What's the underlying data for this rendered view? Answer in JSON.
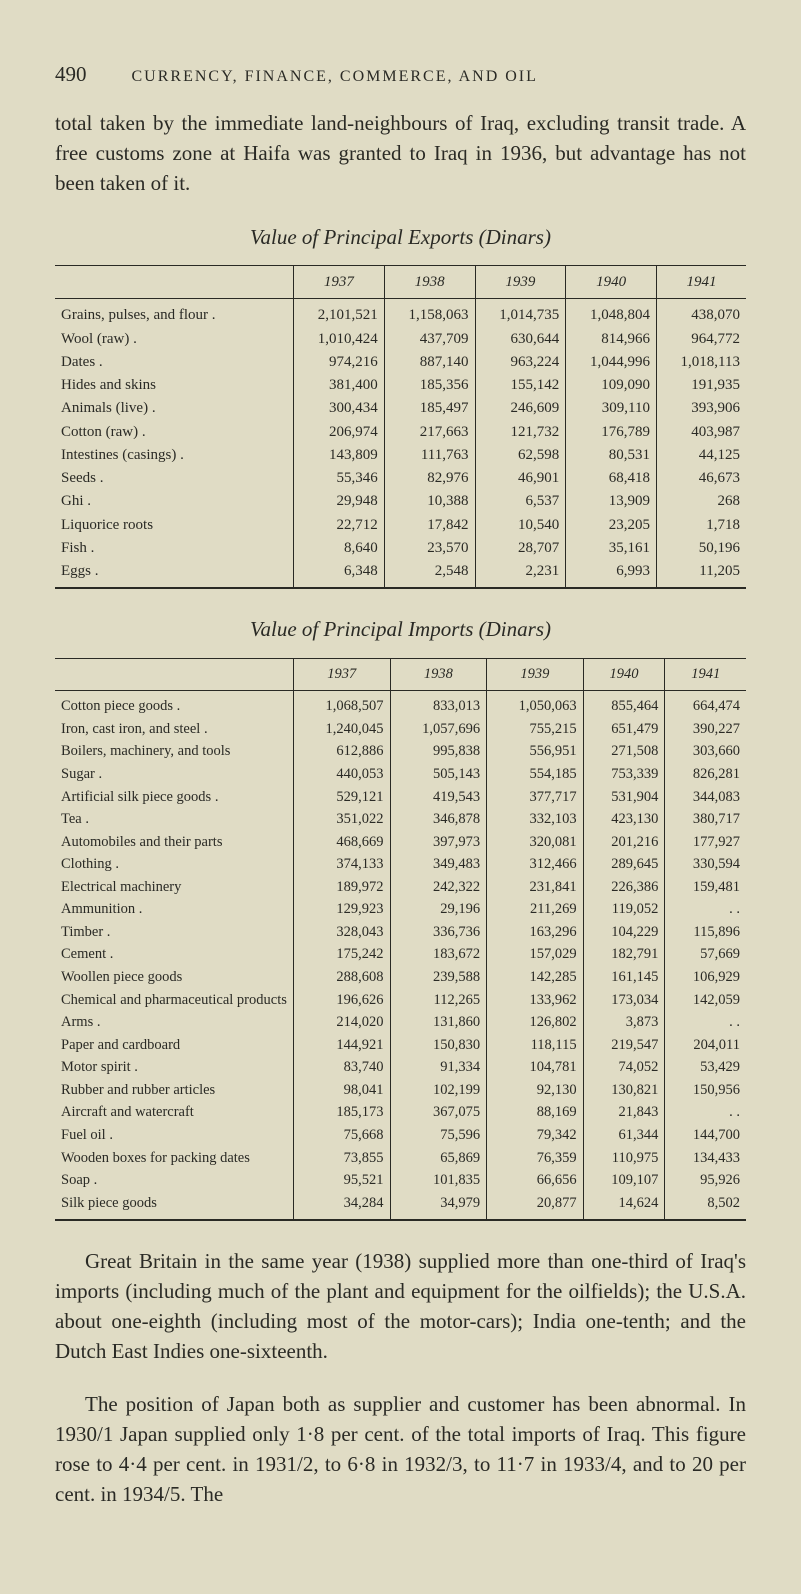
{
  "pageNumber": "490",
  "pageTitle": "CURRENCY, FINANCE, COMMERCE, AND OIL",
  "intro": "total taken by the immediate land-neighbours of Iraq, excluding transit trade. A free customs zone at Haifa was granted to Iraq in 1936, but advantage has not been taken of it.",
  "exportsTitle": "Value of Principal Exports (Dinars)",
  "importsTitle": "Value of Principal Imports (Dinars)",
  "years": [
    "1937",
    "1938",
    "1939",
    "1940",
    "1941"
  ],
  "exports": [
    {
      "label": "Grains, pulses, and flour .",
      "v": [
        "2,101,521",
        "1,158,063",
        "1,014,735",
        "1,048,804",
        "438,070"
      ]
    },
    {
      "label": "Wool (raw)   .",
      "v": [
        "1,010,424",
        "437,709",
        "630,644",
        "814,966",
        "964,772"
      ]
    },
    {
      "label": "Dates    .",
      "v": [
        "974,216",
        "887,140",
        "963,224",
        "1,044,996",
        "1,018,113"
      ]
    },
    {
      "label": "Hides and skins",
      "v": [
        "381,400",
        "185,356",
        "155,142",
        "109,090",
        "191,935"
      ]
    },
    {
      "label": "Animals (live) .",
      "v": [
        "300,434",
        "185,497",
        "246,609",
        "309,110",
        "393,906"
      ]
    },
    {
      "label": "Cotton (raw)  .",
      "v": [
        "206,974",
        "217,663",
        "121,732",
        "176,789",
        "403,987"
      ]
    },
    {
      "label": "Intestines (casings) .",
      "v": [
        "143,809",
        "111,763",
        "62,598",
        "80,531",
        "44,125"
      ]
    },
    {
      "label": "Seeds    .",
      "v": [
        "55,346",
        "82,976",
        "46,901",
        "68,418",
        "46,673"
      ]
    },
    {
      "label": "Ghi     .",
      "v": [
        "29,948",
        "10,388",
        "6,537",
        "13,909",
        "268"
      ]
    },
    {
      "label": "Liquorice roots",
      "v": [
        "22,712",
        "17,842",
        "10,540",
        "23,205",
        "1,718"
      ]
    },
    {
      "label": "Fish     .",
      "v": [
        "8,640",
        "23,570",
        "28,707",
        "35,161",
        "50,196"
      ]
    },
    {
      "label": "Eggs    .",
      "v": [
        "6,348",
        "2,548",
        "2,231",
        "6,993",
        "11,205"
      ]
    }
  ],
  "imports": [
    {
      "label": "Cotton piece goods .",
      "v": [
        "1,068,507",
        "833,013",
        "1,050,063",
        "855,464",
        "664,474"
      ]
    },
    {
      "label": "Iron, cast iron, and steel .",
      "v": [
        "1,240,045",
        "1,057,696",
        "755,215",
        "651,479",
        "390,227"
      ]
    },
    {
      "label": "Boilers, machinery, and tools",
      "v": [
        "612,886",
        "995,838",
        "556,951",
        "271,508",
        "303,660"
      ]
    },
    {
      "label": "Sugar    .",
      "v": [
        "440,053",
        "505,143",
        "554,185",
        "753,339",
        "826,281"
      ]
    },
    {
      "label": "Artificial silk piece goods .",
      "v": [
        "529,121",
        "419,543",
        "377,717",
        "531,904",
        "344,083"
      ]
    },
    {
      "label": "Tea     .",
      "v": [
        "351,022",
        "346,878",
        "332,103",
        "423,130",
        "380,717"
      ]
    },
    {
      "label": "Automobiles and their parts",
      "v": [
        "468,669",
        "397,973",
        "320,081",
        "201,216",
        "177,927"
      ]
    },
    {
      "label": "Clothing    .",
      "v": [
        "374,133",
        "349,483",
        "312,466",
        "289,645",
        "330,594"
      ]
    },
    {
      "label": "Electrical machinery",
      "v": [
        "189,972",
        "242,322",
        "231,841",
        "226,386",
        "159,481"
      ]
    },
    {
      "label": "Ammunition  .",
      "v": [
        "129,923",
        "29,196",
        "211,269",
        "119,052",
        ". ."
      ]
    },
    {
      "label": "Timber .",
      "v": [
        "328,043",
        "336,736",
        "163,296",
        "104,229",
        "115,896"
      ]
    },
    {
      "label": "Cement .",
      "v": [
        "175,242",
        "183,672",
        "157,029",
        "182,791",
        "57,669"
      ]
    },
    {
      "label": "Woollen piece goods",
      "v": [
        "288,608",
        "239,588",
        "142,285",
        "161,145",
        "106,929"
      ]
    },
    {
      "label": "Chemical and pharmaceutical products",
      "v": [
        "196,626",
        "112,265",
        "133,962",
        "173,034",
        "142,059"
      ]
    },
    {
      "label": "Arms    .",
      "v": [
        "214,020",
        "131,860",
        "126,802",
        "3,873",
        ". ."
      ]
    },
    {
      "label": "Paper and cardboard",
      "v": [
        "144,921",
        "150,830",
        "118,115",
        "219,547",
        "204,011"
      ]
    },
    {
      "label": "Motor spirit  .",
      "v": [
        "83,740",
        "91,334",
        "104,781",
        "74,052",
        "53,429"
      ]
    },
    {
      "label": "Rubber and rubber articles",
      "v": [
        "98,041",
        "102,199",
        "92,130",
        "130,821",
        "150,956"
      ]
    },
    {
      "label": "Aircraft and watercraft",
      "v": [
        "185,173",
        "367,075",
        "88,169",
        "21,843",
        ". ."
      ]
    },
    {
      "label": "Fuel oil .",
      "v": [
        "75,668",
        "75,596",
        "79,342",
        "61,344",
        "144,700"
      ]
    },
    {
      "label": "Wooden boxes for packing dates",
      "v": [
        "73,855",
        "65,869",
        "76,359",
        "110,975",
        "134,433"
      ]
    },
    {
      "label": "Soap    .",
      "v": [
        "95,521",
        "101,835",
        "66,656",
        "109,107",
        "95,926"
      ]
    },
    {
      "label": "Silk piece goods",
      "v": [
        "34,284",
        "34,979",
        "20,877",
        "14,624",
        "8,502"
      ]
    }
  ],
  "closing1": "Great Britain in the same year (1938) supplied more than one-third of Iraq's imports (including much of the plant and equipment for the oilfields); the U.S.A. about one-eighth (including most of the motor-cars); India one-tenth; and the Dutch East Indies one-sixteenth.",
  "closing2": "The position of Japan both as supplier and customer has been abnormal. In 1930/1 Japan supplied only 1·8 per cent. of the total imports of Iraq. This figure rose to 4·4 per cent. in 1931/2, to 6·8 in 1932/3, to 11·7 in 1933/4, and to 20 per cent. in 1934/5. The"
}
